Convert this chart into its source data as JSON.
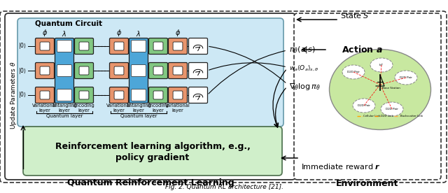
{
  "fig_width": 6.4,
  "fig_height": 2.76,
  "dpi": 100,
  "caption": "Fig. 2. Quantum RL architecture [21].",
  "qrl_label": "Quantum Reinforcement Learning",
  "env_label": "Environment",
  "state_label": "State $S$",
  "action_label": "Action $\\boldsymbol{a}$",
  "reward_label": "Immediate reward $\\boldsymbol{r}$",
  "pi_label": "$\\pi_{\\theta}(a|s)$",
  "grad_label": "$\\nabla_{\\theta} \\log \\pi_{\\theta}$",
  "wc_label": "$w_a\\langle O_a\\rangle_{s,\\theta}$",
  "qc_label": "Quantum Circuit",
  "rl_text1": "Reinforcement learning algorithm, e.g.,",
  "rl_text2": "policy gradient",
  "update_label": "Update Parameters $\\theta$",
  "ql_label": "Quantum layer",
  "phi_label": "$\\phi$",
  "lambda_label": "$\\lambda$",
  "var_box_color": "#e8956d",
  "ent_box_color": "#4da6d8",
  "enc_box_color": "#82c882",
  "qc_bg_color": "#cde8f5",
  "rl_bg_color": "#d0efca",
  "env_bg_color": "#c8e8a0"
}
